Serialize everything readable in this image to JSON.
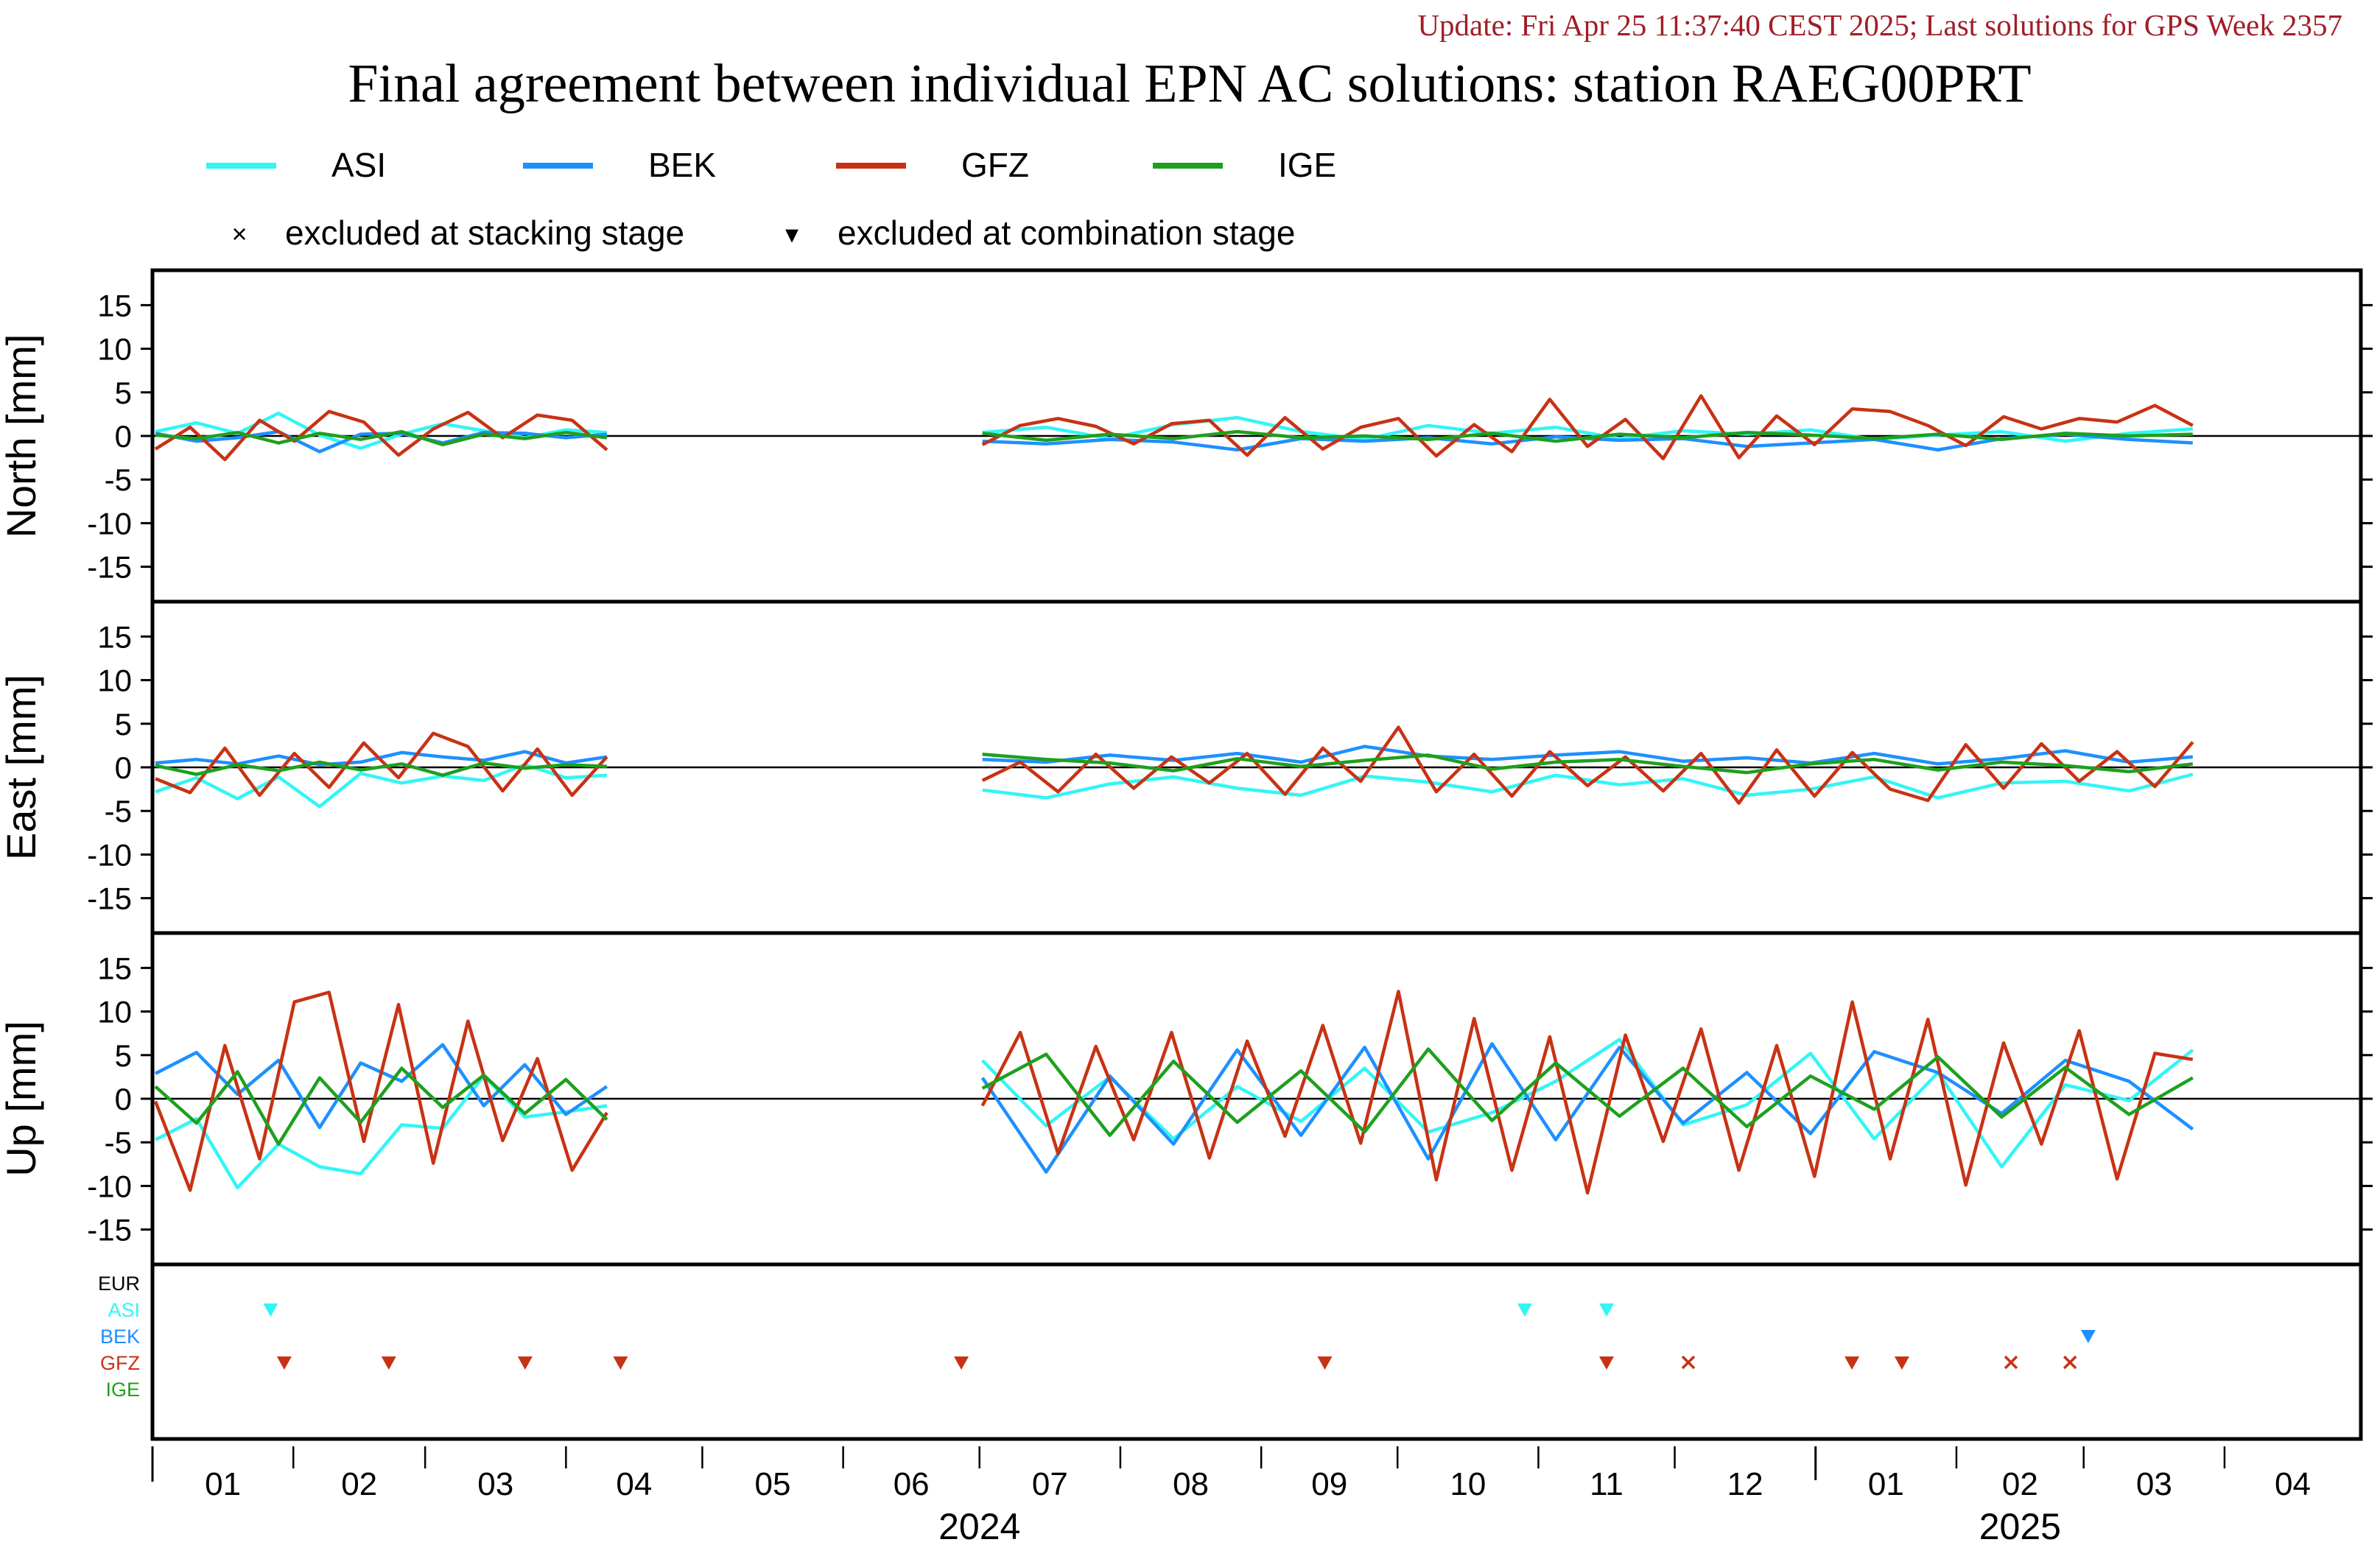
{
  "header": {
    "update": "Update: Fri Apr 25 11:37:40 CEST 2025; Last solutions for GPS Week 2357",
    "title": "Final agreement between individual EPN AC solutions: station RAEG00PRT"
  },
  "legend": {
    "series": [
      {
        "name": "ASI",
        "color": "#33f5f5"
      },
      {
        "name": "BEK",
        "color": "#1e90ff"
      },
      {
        "name": "GFZ",
        "color": "#c83214"
      },
      {
        "name": "IGE",
        "color": "#1ea01e"
      }
    ],
    "markers": [
      {
        "symbol": "×",
        "label": "excluded at stacking stage"
      },
      {
        "symbol": "▾",
        "label": "excluded at combination stage"
      }
    ]
  },
  "chart_data": {
    "type": "line",
    "y_ticks": [
      15,
      10,
      5,
      0,
      -5,
      -10,
      -15
    ],
    "ylim": [
      -19,
      19
    ],
    "x_months": [
      {
        "label": "01",
        "start": "2024-01-01"
      },
      {
        "label": "02",
        "start": "2024-02-01"
      },
      {
        "label": "03",
        "start": "2024-03-01"
      },
      {
        "label": "04",
        "start": "2024-04-01"
      },
      {
        "label": "05",
        "start": "2024-05-01"
      },
      {
        "label": "06",
        "start": "2024-06-01"
      },
      {
        "label": "07",
        "start": "2024-07-01"
      },
      {
        "label": "08",
        "start": "2024-08-01"
      },
      {
        "label": "09",
        "start": "2024-09-01"
      },
      {
        "label": "10",
        "start": "2024-10-01"
      },
      {
        "label": "11",
        "start": "2024-11-01"
      },
      {
        "label": "12",
        "start": "2024-12-01"
      },
      {
        "label": "01",
        "start": "2025-01-01"
      },
      {
        "label": "02",
        "start": "2025-02-01"
      },
      {
        "label": "03",
        "start": "2025-03-01"
      },
      {
        "label": "04",
        "start": "2025-04-01"
      }
    ],
    "x_range": [
      "2024-01-01",
      "2025-05-01"
    ],
    "years": [
      {
        "label": "2024",
        "position": "2024-07-01"
      },
      {
        "label": "2025",
        "position": "2025-02-15"
      }
    ],
    "data_periods": [
      [
        "2024-01-01",
        "2024-04-10"
      ],
      [
        "2024-07-01",
        "2025-03-25"
      ]
    ],
    "panels": [
      {
        "ylabel": "North [mm]",
        "series": [
          {
            "name": "ASI",
            "values": [
              [
                0.5,
                1.5,
                0.3,
                2.6,
                0.1,
                -1.4,
                0.2,
                1.4,
                0.6,
                -0.2,
                0.7,
                0.4
              ],
              [
                0.4,
                1.0,
                -0.3,
                1.3,
                2.1,
                0.5,
                -0.4,
                1.2,
                0.3,
                1.0,
                -0.3,
                0.6,
                0.2,
                0.7,
                -0.4,
                0.1,
                0.5,
                -0.6,
                0.3,
                0.8
              ]
            ]
          },
          {
            "name": "BEK",
            "values": [
              [
                0.3,
                -0.6,
                -0.2,
                0.5,
                -1.8,
                0.2,
                0.3,
                -0.8,
                0.4,
                0.3,
                -0.2,
                0.2
              ],
              [
                -0.6,
                -0.9,
                -0.4,
                -0.7,
                -1.6,
                -0.3,
                -0.6,
                -0.2,
                -0.9,
                -0.1,
                -0.5,
                -0.3,
                -1.2,
                -0.8,
                -0.4,
                -1.6,
                -0.3,
                0.2,
                -0.4,
                -0.8
              ]
            ]
          },
          {
            "name": "GFZ",
            "values": [
              [
                -1.5,
                1.0,
                -2.7,
                1.8,
                -0.6,
                2.8,
                1.6,
                -2.2,
                0.8,
                2.7,
                -0.2,
                2.4,
                1.8,
                -1.6
              ],
              [
                -1.0,
                1.2,
                2.0,
                1.1,
                -0.9,
                1.4,
                1.8,
                -2.2,
                2.1,
                -1.5,
                1.0,
                2.0,
                -2.3,
                1.3,
                -1.8,
                4.2,
                -1.2,
                1.9,
                -2.6,
                4.6,
                -2.5,
                2.3,
                -1.0,
                3.1,
                2.8,
                1.2,
                -1.1,
                2.2,
                0.8,
                2.0,
                1.6,
                3.5,
                1.2
              ]
            ]
          },
          {
            "name": "IGE",
            "values": [
              [
                0.1,
                -0.3,
                0.4,
                -0.8,
                0.3,
                -0.4,
                0.5,
                -1.0,
                0.2,
                -0.3,
                0.4,
                -0.2
              ],
              [
                0.3,
                -0.5,
                0.2,
                -0.3,
                0.5,
                -0.2,
                0.0,
                -0.4,
                0.3,
                -0.6,
                0.2,
                -0.2,
                0.4,
                0.1,
                -0.3,
                0.2,
                -0.4,
                0.3,
                0.0,
                0.2
              ]
            ]
          }
        ]
      },
      {
        "ylabel": "East [mm]",
        "series": [
          {
            "name": "ASI",
            "values": [
              [
                -2.8,
                -1.2,
                -3.6,
                -1.1,
                -4.5,
                -0.7,
                -1.8,
                -1.0,
                -1.5,
                0.3,
                -1.2,
                -0.9
              ],
              [
                -2.6,
                -3.5,
                -1.9,
                -1.1,
                -2.4,
                -3.2,
                -1.0,
                -1.7,
                -2.8,
                -0.9,
                -2.0,
                -1.3,
                -3.2,
                -2.5,
                -1.1,
                -3.5,
                -1.8,
                -1.6,
                -2.7,
                -0.8
              ]
            ]
          },
          {
            "name": "BEK",
            "values": [
              [
                0.5,
                0.9,
                0.4,
                1.3,
                0.3,
                0.6,
                1.7,
                1.2,
                0.8,
                1.8,
                0.5,
                1.2
              ],
              [
                0.9,
                0.6,
                1.4,
                0.8,
                1.6,
                0.6,
                2.4,
                1.3,
                0.9,
                1.4,
                1.8,
                0.7,
                1.1,
                0.5,
                1.6,
                0.4,
                1.0,
                1.9,
                0.6,
                1.2
              ]
            ]
          },
          {
            "name": "GFZ",
            "values": [
              [
                -1.3,
                -2.9,
                2.2,
                -3.2,
                1.6,
                -2.3,
                2.8,
                -1.2,
                3.9,
                2.4,
                -2.7,
                2.1,
                -3.2,
                1.2
              ],
              [
                -1.5,
                0.6,
                -2.8,
                1.5,
                -2.4,
                1.2,
                -1.8,
                1.6,
                -3.1,
                2.2,
                -1.6,
                4.6,
                -2.8,
                1.5,
                -3.3,
                1.8,
                -2.1,
                1.2,
                -2.7,
                1.6,
                -4.1,
                2.0,
                -3.3,
                1.7,
                -2.5,
                -3.8,
                2.6,
                -2.4,
                2.7,
                -1.6,
                1.8,
                -2.2,
                2.9
              ]
            ]
          },
          {
            "name": "IGE",
            "values": [
              [
                0.2,
                -0.8,
                0.3,
                -0.4,
                0.6,
                -0.3,
                0.4,
                -0.9,
                0.5,
                -0.1,
                0.3,
                0.1
              ],
              [
                1.5,
                0.9,
                0.5,
                -0.4,
                1.0,
                0.1,
                0.8,
                1.4,
                -0.2,
                0.6,
                0.9,
                0.1,
                -0.6,
                0.4,
                0.9,
                -0.3,
                0.6,
                0.2,
                -0.5,
                0.4
              ]
            ]
          }
        ]
      },
      {
        "ylabel": "Up [mm]",
        "series": [
          {
            "name": "ASI",
            "values": [
              [
                -4.7,
                -2.3,
                -10.2,
                -5.2,
                -7.8,
                -8.6,
                -3.0,
                -3.4,
                2.6,
                -2.1,
                -1.5,
                -0.8
              ],
              [
                4.4,
                -3.1,
                2.5,
                -4.6,
                1.4,
                -2.6,
                3.5,
                -3.8,
                -1.6,
                2.0,
                6.8,
                -3.0,
                -0.7,
                5.2,
                -4.6,
                3.0,
                -7.8,
                1.6,
                -0.2,
                5.6
              ]
            ]
          },
          {
            "name": "BEK",
            "values": [
              [
                2.9,
                5.3,
                0.5,
                4.4,
                -3.3,
                4.1,
                2.0,
                6.2,
                -0.8,
                3.9,
                -1.8,
                1.4
              ],
              [
                2.4,
                -8.4,
                2.6,
                -5.2,
                5.6,
                -4.2,
                5.9,
                -6.9,
                6.3,
                -4.7,
                5.9,
                -2.8,
                3.0,
                -4.0,
                5.4,
                3.0,
                -1.7,
                4.4,
                2.0,
                -3.5
              ]
            ]
          },
          {
            "name": "GFZ",
            "values": [
              [
                -0.3,
                -10.5,
                6.1,
                -6.9,
                11.1,
                12.2,
                -4.9,
                10.8,
                -7.4,
                8.9,
                -4.8,
                4.6,
                -8.2,
                -1.6
              ],
              [
                -0.8,
                7.6,
                -6.3,
                6.0,
                -4.7,
                7.6,
                -6.8,
                6.6,
                -4.3,
                8.4,
                -5.1,
                12.3,
                -9.3,
                9.2,
                -8.2,
                7.1,
                -10.8,
                7.3,
                -4.9,
                8.0,
                -8.2,
                6.1,
                -8.9,
                11.1,
                -6.9,
                9.1,
                -9.9,
                6.4,
                -5.2,
                7.8,
                -9.2,
                5.2,
                4.5
              ]
            ]
          },
          {
            "name": "IGE",
            "values": [
              [
                1.4,
                -2.8,
                3.1,
                -5.2,
                2.4,
                -2.7,
                3.5,
                -1.0,
                2.7,
                -1.7,
                2.2,
                -2.4
              ],
              [
                1.2,
                5.1,
                -4.2,
                4.3,
                -2.7,
                3.2,
                -3.8,
                5.7,
                -2.5,
                4.1,
                -2.0,
                3.5,
                -3.2,
                2.6,
                -1.2,
                4.8,
                -2.1,
                3.6,
                -1.8,
                2.4
              ]
            ]
          }
        ]
      }
    ],
    "exclusion_panel": {
      "rows": [
        {
          "name": "EUR",
          "color": "#000000",
          "markers": []
        },
        {
          "name": "ASI",
          "color": "#33f5f5",
          "markers": [
            {
              "date": "2024-01-27",
              "type": "combination"
            },
            {
              "date": "2024-10-29",
              "type": "combination"
            },
            {
              "date": "2024-11-16",
              "type": "combination"
            }
          ]
        },
        {
          "name": "BEK",
          "color": "#1e90ff",
          "markers": [
            {
              "date": "2025-03-02",
              "type": "combination"
            }
          ]
        },
        {
          "name": "GFZ",
          "color": "#c83214",
          "markers": [
            {
              "date": "2024-01-30",
              "type": "combination"
            },
            {
              "date": "2024-02-22",
              "type": "combination"
            },
            {
              "date": "2024-03-23",
              "type": "combination"
            },
            {
              "date": "2024-04-13",
              "type": "combination"
            },
            {
              "date": "2024-06-27",
              "type": "combination"
            },
            {
              "date": "2024-09-15",
              "type": "combination"
            },
            {
              "date": "2024-11-16",
              "type": "combination"
            },
            {
              "date": "2024-12-04",
              "type": "stacking"
            },
            {
              "date": "2025-01-09",
              "type": "combination"
            },
            {
              "date": "2025-01-20",
              "type": "combination"
            },
            {
              "date": "2025-02-13",
              "type": "stacking"
            },
            {
              "date": "2025-02-26",
              "type": "stacking"
            }
          ]
        },
        {
          "name": "IGE",
          "color": "#1ea01e",
          "markers": []
        }
      ]
    }
  }
}
